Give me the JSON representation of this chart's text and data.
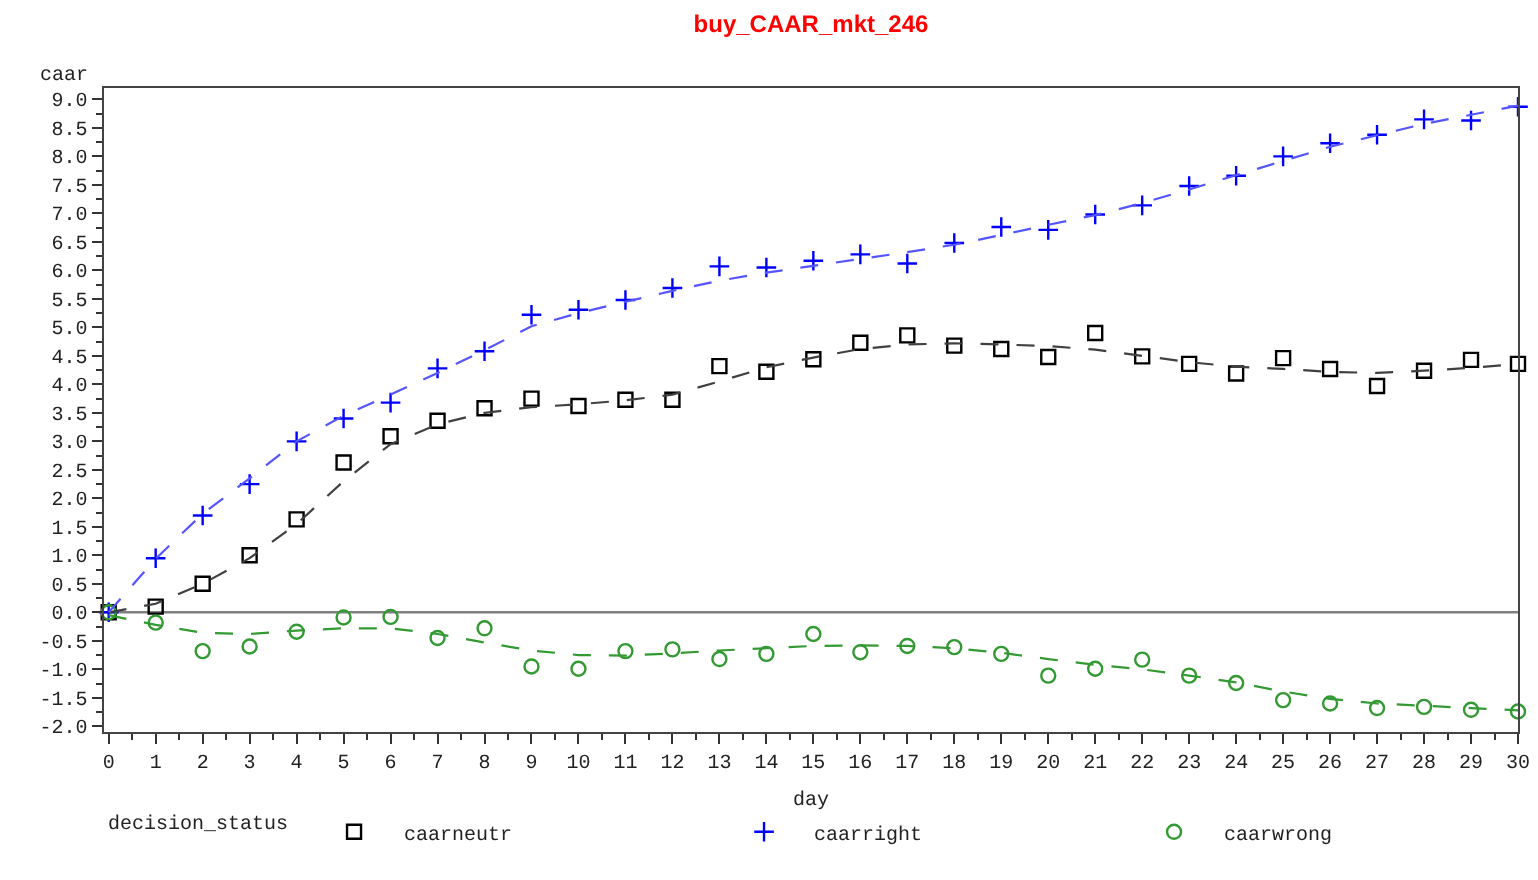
{
  "chart_data": {
    "type": "scatter",
    "title": "buy_CAAR_mkt_246",
    "xlabel": "day",
    "ylabel": "caar",
    "legend_title": "decision_status",
    "legend": "bottom",
    "grid": false,
    "x": [
      0,
      1,
      2,
      3,
      4,
      5,
      6,
      7,
      8,
      9,
      10,
      11,
      12,
      13,
      14,
      15,
      16,
      17,
      18,
      19,
      20,
      21,
      22,
      23,
      24,
      25,
      26,
      27,
      28,
      29,
      30
    ],
    "xlim": [
      -0.1,
      30
    ],
    "xticks": [
      0,
      1,
      2,
      3,
      4,
      5,
      6,
      7,
      8,
      9,
      10,
      11,
      12,
      13,
      14,
      15,
      16,
      17,
      18,
      19,
      20,
      21,
      22,
      23,
      24,
      25,
      26,
      27,
      28,
      29,
      30
    ],
    "ylim": [
      -2.1,
      9.2
    ],
    "yticks": [
      {
        "value": -2,
        "label": "-2.0"
      },
      {
        "value": -1.5,
        "label": "-1.5"
      },
      {
        "value": -1,
        "label": "-1.0"
      },
      {
        "value": -0.5,
        "label": "-0.5"
      },
      {
        "value": 0,
        "label": "0.0"
      },
      {
        "value": 0.5,
        "label": "0.5"
      },
      {
        "value": 1,
        "label": "1.0"
      },
      {
        "value": 1.5,
        "label": "1.5"
      },
      {
        "value": 2,
        "label": "2.0"
      },
      {
        "value": 2.5,
        "label": "2.5"
      },
      {
        "value": 3,
        "label": "3.0"
      },
      {
        "value": 3.5,
        "label": "3.5"
      },
      {
        "value": 4,
        "label": "4.0"
      },
      {
        "value": 4.5,
        "label": "4.5"
      },
      {
        "value": 5,
        "label": "5.0"
      },
      {
        "value": 5.5,
        "label": "5.5"
      },
      {
        "value": 6,
        "label": "6.0"
      },
      {
        "value": 6.5,
        "label": "6.5"
      },
      {
        "value": 7,
        "label": "7.0"
      },
      {
        "value": 7.5,
        "label": "7.5"
      },
      {
        "value": 8,
        "label": "8.0"
      },
      {
        "value": 8.5,
        "label": "8.5"
      },
      {
        "value": 9,
        "label": "9.0"
      }
    ],
    "ref_lines": [
      {
        "axis": "y",
        "value": 0,
        "color": "#808080",
        "line_style": "solid"
      }
    ],
    "series": [
      {
        "name": "caarneutr",
        "marker": "square",
        "color": "#000000",
        "values": [
          0,
          0.1,
          0.5,
          1.0,
          1.63,
          2.63,
          3.09,
          3.36,
          3.58,
          3.75,
          3.62,
          3.73,
          3.73,
          4.32,
          4.22,
          4.44,
          4.73,
          4.86,
          4.68,
          4.62,
          4.48,
          4.9,
          4.49,
          4.36,
          4.19,
          4.46,
          4.27,
          3.97,
          4.24,
          4.43,
          4.36
        ]
      },
      {
        "name": "caarright",
        "marker": "cross",
        "color": "#0000ff",
        "values": [
          0,
          0.95,
          1.7,
          2.25,
          3.0,
          3.4,
          3.68,
          4.28,
          4.58,
          5.22,
          5.31,
          5.48,
          5.69,
          6.07,
          6.05,
          6.17,
          6.28,
          6.12,
          6.48,
          6.76,
          6.71,
          6.98,
          7.14,
          7.48,
          7.66,
          8.0,
          8.23,
          8.38,
          8.65,
          8.63,
          8.87
        ]
      },
      {
        "name": "caarwrong",
        "marker": "circle",
        "color": "#339933",
        "values": [
          0,
          -0.18,
          -0.68,
          -0.6,
          -0.34,
          -0.09,
          -0.08,
          -0.45,
          -0.28,
          -0.95,
          -0.99,
          -0.68,
          -0.65,
          -0.82,
          -0.73,
          -0.38,
          -0.7,
          -0.59,
          -0.61,
          -0.73,
          -1.11,
          -0.99,
          -0.83,
          -1.11,
          -1.24,
          -1.54,
          -1.6,
          -1.68,
          -1.66,
          -1.71,
          -1.74
        ]
      },
      {
        "type": "line",
        "marker": "none",
        "line_style": "dashed",
        "color": "#404040",
        "x": [
          0,
          1,
          2,
          3,
          4,
          5,
          6,
          7,
          8,
          9,
          10,
          11,
          12,
          13,
          14,
          15,
          16,
          17,
          18,
          19,
          20,
          21,
          22,
          23,
          24,
          25,
          26,
          27,
          28,
          29,
          30
        ],
        "values": [
          0,
          0.15,
          0.5,
          0.95,
          1.55,
          2.3,
          2.95,
          3.3,
          3.5,
          3.6,
          3.65,
          3.72,
          3.82,
          4.05,
          4.3,
          4.47,
          4.62,
          4.7,
          4.72,
          4.7,
          4.67,
          4.61,
          4.5,
          4.39,
          4.31,
          4.27,
          4.22,
          4.2,
          4.24,
          4.29,
          4.36
        ]
      },
      {
        "type": "line",
        "marker": "none",
        "line_style": "dashed",
        "color": "#5555ff",
        "x": [
          0,
          1,
          2,
          3,
          4,
          5,
          6,
          7,
          8,
          9,
          10,
          11,
          12,
          13,
          14,
          15,
          16,
          17,
          18,
          19,
          20,
          21,
          22,
          23,
          24,
          25,
          26,
          27,
          28,
          29,
          30
        ],
        "values": [
          0,
          0.94,
          1.73,
          2.35,
          3.0,
          3.45,
          3.82,
          4.2,
          4.6,
          5.02,
          5.25,
          5.45,
          5.64,
          5.82,
          5.96,
          6.08,
          6.2,
          6.32,
          6.45,
          6.62,
          6.8,
          6.97,
          7.18,
          7.42,
          7.67,
          7.92,
          8.17,
          8.37,
          8.57,
          8.73,
          8.89
        ]
      },
      {
        "type": "line",
        "marker": "none",
        "line_style": "dashed",
        "color": "#339933",
        "x": [
          0,
          1,
          2,
          3,
          4,
          5,
          6,
          7,
          8,
          9,
          10,
          11,
          12,
          13,
          14,
          15,
          16,
          17,
          18,
          19,
          20,
          21,
          22,
          23,
          24,
          25,
          26,
          27,
          28,
          29,
          30
        ],
        "values": [
          -0.05,
          -0.22,
          -0.36,
          -0.38,
          -0.32,
          -0.28,
          -0.28,
          -0.38,
          -0.53,
          -0.67,
          -0.75,
          -0.76,
          -0.72,
          -0.67,
          -0.63,
          -0.59,
          -0.58,
          -0.59,
          -0.63,
          -0.71,
          -0.82,
          -0.92,
          -1.0,
          -1.11,
          -1.23,
          -1.39,
          -1.52,
          -1.6,
          -1.64,
          -1.68,
          -1.72
        ]
      }
    ]
  }
}
